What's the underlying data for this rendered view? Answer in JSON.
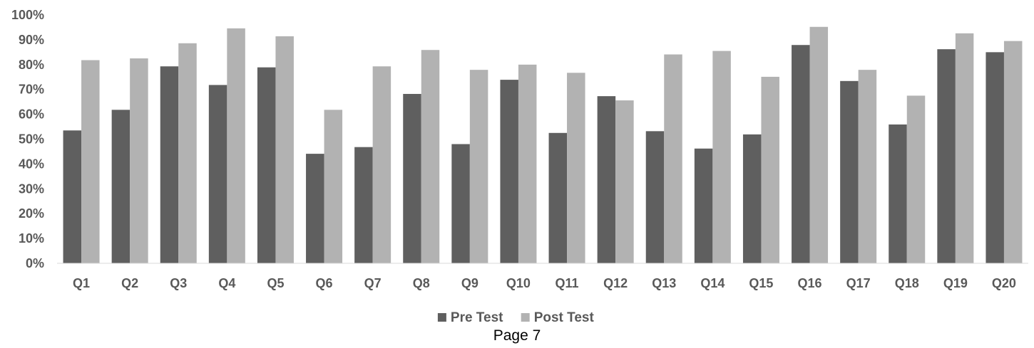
{
  "chart_data": {
    "type": "bar",
    "categories": [
      "Q1",
      "Q2",
      "Q3",
      "Q4",
      "Q5",
      "Q6",
      "Q7",
      "Q8",
      "Q9",
      "Q10",
      "Q11",
      "Q12",
      "Q13",
      "Q14",
      "Q15",
      "Q16",
      "Q17",
      "Q18",
      "Q19",
      "Q20"
    ],
    "series": [
      {
        "name": "Pre Test",
        "color": "#5f5f5f",
        "values": [
          53.5,
          61.8,
          79.3,
          71.8,
          78.9,
          44.1,
          46.8,
          68.2,
          48.0,
          73.9,
          52.5,
          67.3,
          53.2,
          46.2,
          51.9,
          87.9,
          73.4,
          55.9,
          86.2,
          85.0
        ]
      },
      {
        "name": "Post Test",
        "color": "#b2b2b2",
        "values": [
          81.8,
          82.5,
          88.6,
          94.6,
          91.4,
          61.8,
          79.3,
          85.9,
          77.9,
          80.0,
          76.7,
          65.6,
          84.1,
          85.5,
          75.1,
          95.2,
          77.9,
          67.5,
          92.6,
          89.5
        ]
      }
    ],
    "ylim": [
      0,
      100
    ],
    "yticks": [
      "0%",
      "10%",
      "20%",
      "30%",
      "40%",
      "50%",
      "60%",
      "70%",
      "80%",
      "90%",
      "100%"
    ],
    "legend_position": "bottom",
    "grid": false
  },
  "footer": {
    "page_label": "Page 7"
  }
}
